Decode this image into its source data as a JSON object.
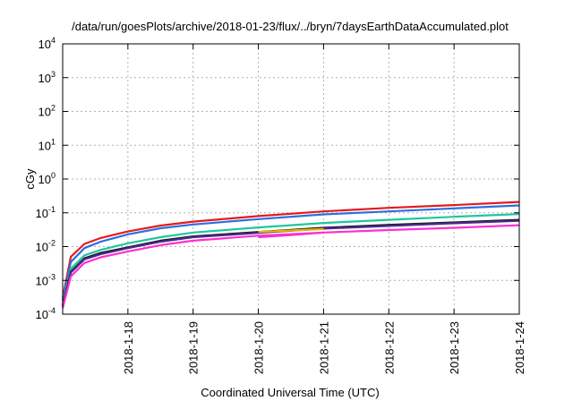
{
  "chart_data": {
    "type": "line",
    "title": "/data/run/goesPlots/archive/2018-01-23/flux/../bryn/7daysEarthDataAccumulated.plot",
    "xlabel": "Coordinated Universal Time (UTC)",
    "ylabel": "cGy",
    "y_scale": "log",
    "ylim": [
      0.0001,
      10000
    ],
    "xlim": [
      "2018-01-17",
      "2018-01-24"
    ],
    "grid": true,
    "legend": "none",
    "y_ticks": [
      {
        "value": 0.0001,
        "base": "10",
        "exp": "-4"
      },
      {
        "value": 0.001,
        "base": "10",
        "exp": "-3"
      },
      {
        "value": 0.01,
        "base": "10",
        "exp": "-2"
      },
      {
        "value": 0.1,
        "base": "10",
        "exp": "-1"
      },
      {
        "value": 1,
        "base": "10",
        "exp": "0"
      },
      {
        "value": 10,
        "base": "10",
        "exp": "1"
      },
      {
        "value": 100,
        "base": "10",
        "exp": "2"
      },
      {
        "value": 1000,
        "base": "10",
        "exp": "3"
      },
      {
        "value": 10000,
        "base": "10",
        "exp": "4"
      }
    ],
    "x_ticks": [
      {
        "value": "2018-01-18",
        "label": "2018-1-18"
      },
      {
        "value": "2018-01-19",
        "label": "2018-1-19"
      },
      {
        "value": "2018-01-20",
        "label": "2018-1-20"
      },
      {
        "value": "2018-01-21",
        "label": "2018-1-21"
      },
      {
        "value": "2018-01-22",
        "label": "2018-1-22"
      },
      {
        "value": "2018-01-23",
        "label": "2018-1-23"
      },
      {
        "value": "2018-01-24",
        "label": "2018-1-24"
      }
    ],
    "series": [
      {
        "color": "#e41a1c",
        "points": [
          [
            "2018-01-17T00:00",
            0.0003
          ],
          [
            "2018-01-17T03:00",
            0.005
          ],
          [
            "2018-01-17T08:00",
            0.012
          ],
          [
            "2018-01-17T14:00",
            0.018
          ],
          [
            "2018-01-18T00:00",
            0.028
          ],
          [
            "2018-01-18T12:00",
            0.042
          ],
          [
            "2018-01-19T00:00",
            0.055
          ],
          [
            "2018-01-20T00:00",
            0.08
          ],
          [
            "2018-01-21T00:00",
            0.11
          ],
          [
            "2018-01-22T00:00",
            0.14
          ],
          [
            "2018-01-23T00:00",
            0.17
          ],
          [
            "2018-01-24T00:00",
            0.21
          ]
        ]
      },
      {
        "color": "#2b6fe0",
        "points": [
          [
            "2018-01-17T00:00",
            0.00025
          ],
          [
            "2018-01-17T03:00",
            0.0035
          ],
          [
            "2018-01-17T08:00",
            0.009
          ],
          [
            "2018-01-17T14:00",
            0.014
          ],
          [
            "2018-01-18T00:00",
            0.023
          ],
          [
            "2018-01-18T12:00",
            0.035
          ],
          [
            "2018-01-19T00:00",
            0.045
          ],
          [
            "2018-01-20T00:00",
            0.065
          ],
          [
            "2018-01-21T00:00",
            0.09
          ],
          [
            "2018-01-22T00:00",
            0.11
          ],
          [
            "2018-01-23T00:00",
            0.135
          ],
          [
            "2018-01-24T00:00",
            0.165
          ]
        ]
      },
      {
        "color": "#1fc6a0",
        "points": [
          [
            "2018-01-17T00:00",
            0.0002
          ],
          [
            "2018-01-17T03:00",
            0.0022
          ],
          [
            "2018-01-17T08:00",
            0.0055
          ],
          [
            "2018-01-17T14:00",
            0.008
          ],
          [
            "2018-01-18T00:00",
            0.0125
          ],
          [
            "2018-01-18T12:00",
            0.019
          ],
          [
            "2018-01-19T00:00",
            0.026
          ],
          [
            "2018-01-20T00:00",
            0.037
          ],
          [
            "2018-01-21T00:00",
            0.05
          ],
          [
            "2018-01-22T00:00",
            0.062
          ],
          [
            "2018-01-23T00:00",
            0.076
          ],
          [
            "2018-01-24T00:00",
            0.092
          ]
        ]
      },
      {
        "color": "#1a1a1a",
        "points": [
          [
            "2018-01-17T00:00",
            0.00018
          ],
          [
            "2018-01-17T03:00",
            0.0018
          ],
          [
            "2018-01-17T08:00",
            0.0045
          ],
          [
            "2018-01-17T14:00",
            0.0065
          ],
          [
            "2018-01-18T00:00",
            0.0095
          ],
          [
            "2018-01-18T12:00",
            0.015
          ],
          [
            "2018-01-19T00:00",
            0.02
          ],
          [
            "2018-01-20T00:00",
            0.027
          ],
          [
            "2018-01-21T00:00",
            0.036
          ],
          [
            "2018-01-22T00:00",
            0.044
          ],
          [
            "2018-01-23T00:00",
            0.052
          ],
          [
            "2018-01-24T00:00",
            0.062
          ]
        ]
      },
      {
        "color": "#4a2a8c",
        "points": [
          [
            "2018-01-17T00:00",
            0.00017
          ],
          [
            "2018-01-17T03:00",
            0.0017
          ],
          [
            "2018-01-17T08:00",
            0.0042
          ],
          [
            "2018-01-17T14:00",
            0.006
          ],
          [
            "2018-01-18T00:00",
            0.009
          ],
          [
            "2018-01-18T12:00",
            0.014
          ],
          [
            "2018-01-19T00:00",
            0.019
          ],
          [
            "2018-01-20T00:00",
            0.0255
          ],
          [
            "2018-01-21T00:00",
            0.034
          ],
          [
            "2018-01-22T00:00",
            0.041
          ],
          [
            "2018-01-23T00:00",
            0.049
          ],
          [
            "2018-01-24T00:00",
            0.058
          ]
        ]
      },
      {
        "color": "#e8b400",
        "points": [
          [
            "2018-01-20T00:00",
            0.027
          ],
          [
            "2018-01-20T12:00",
            0.03
          ],
          [
            "2018-01-21T00:00",
            0.033
          ]
        ]
      },
      {
        "color": "#ff2fd2",
        "points": [
          [
            "2018-01-17T00:00",
            0.00015
          ],
          [
            "2018-01-17T03:00",
            0.0013
          ],
          [
            "2018-01-17T08:00",
            0.0033
          ],
          [
            "2018-01-17T14:00",
            0.0048
          ],
          [
            "2018-01-18T00:00",
            0.0072
          ],
          [
            "2018-01-18T12:00",
            0.011
          ],
          [
            "2018-01-19T00:00",
            0.015
          ],
          [
            "2018-01-20T00:00",
            0.021
          ],
          [
            "2018-01-21T00:00",
            0.026
          ],
          [
            "2018-01-22T00:00",
            0.031
          ],
          [
            "2018-01-23T00:00",
            0.036
          ],
          [
            "2018-01-24T00:00",
            0.043
          ]
        ]
      },
      {
        "color": "#ff2fd2",
        "points": [
          [
            "2018-01-20T00:00",
            0.019
          ],
          [
            "2018-01-20T12:00",
            0.022
          ],
          [
            "2018-01-21T00:00",
            0.026
          ]
        ]
      }
    ]
  }
}
